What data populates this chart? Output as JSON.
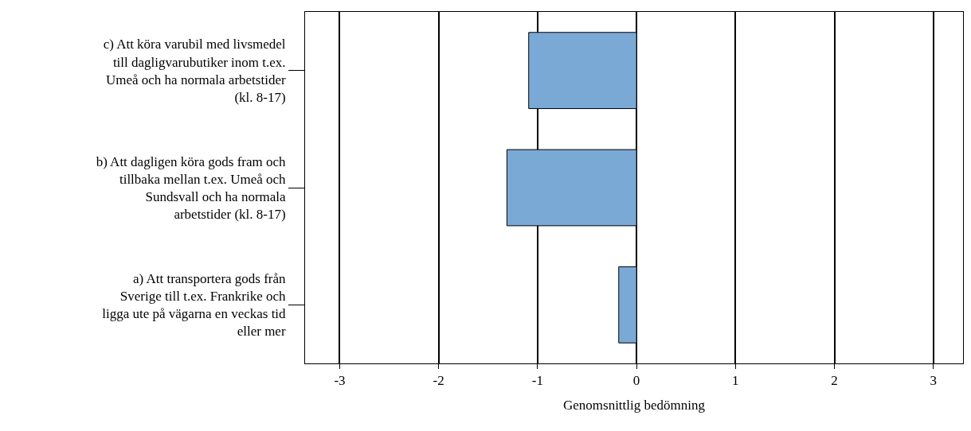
{
  "chart_data": {
    "type": "bar",
    "orientation": "horizontal",
    "xlabel": "Genomsnittlig bedömning",
    "categories": [
      "c) Att köra varubil med livsmedel till dagligvarubutiker inom t.ex. Umeå och ha normala arbetstider (kl. 8-17)",
      "b) Att dagligen köra gods fram och tillbaka mellan t.ex. Umeå och Sundsvall och ha normala arbetstider (kl. 8-17)",
      "a) Att transportera gods från Sverige till t.ex. Frankrike och ligga ute på vägarna en veckas tid eller mer"
    ],
    "values": [
      -1.09,
      -1.31,
      -0.18
    ],
    "color": "#7aa9d6",
    "xlim": [
      -3.35,
      3.3
    ],
    "xticks": [
      -3,
      -2,
      -1,
      0,
      1,
      2,
      3
    ],
    "grid": "x"
  }
}
